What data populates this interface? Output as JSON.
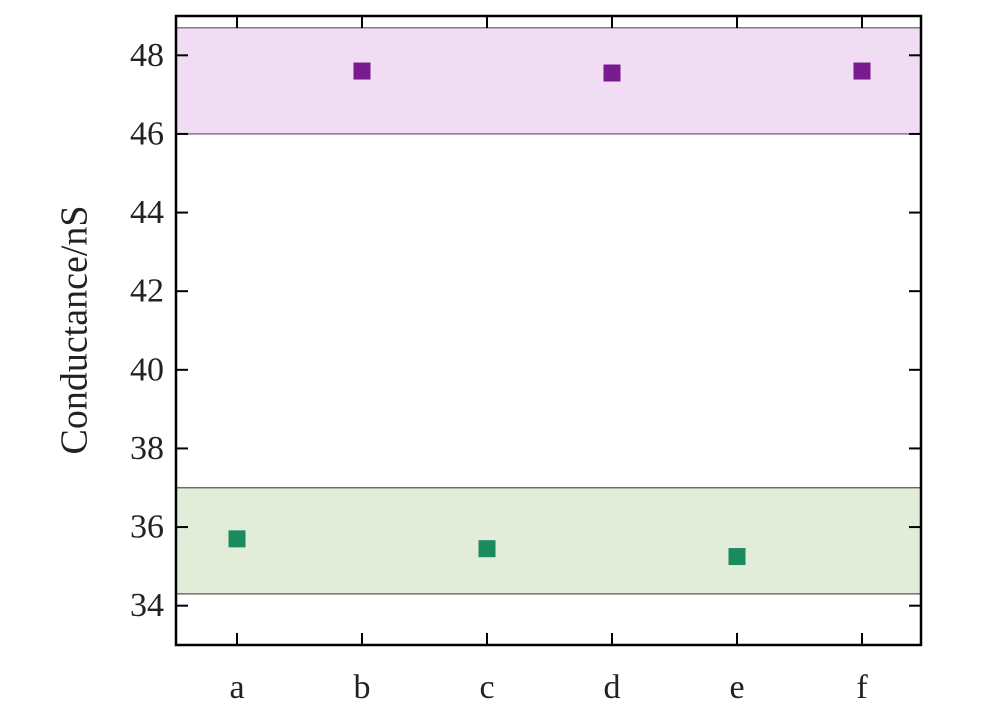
{
  "chart_data": {
    "type": "scatter",
    "xlabel": "",
    "ylabel": "Conductance/nS",
    "ylim": [
      33,
      49
    ],
    "categories": [
      "a",
      "b",
      "c",
      "d",
      "e",
      "f"
    ],
    "y_ticks": [
      34,
      36,
      38,
      40,
      42,
      44,
      46,
      48
    ],
    "bands": [
      {
        "y_range": [
          46.0,
          48.7
        ],
        "color": "#f0dcf3"
      },
      {
        "y_range": [
          34.3,
          37.0
        ],
        "color": "#e1edd9"
      }
    ],
    "series": [
      {
        "marker": "square",
        "color": "#7a1a8f",
        "points": [
          {
            "x": "b",
            "y": 47.6
          },
          {
            "x": "d",
            "y": 47.55
          },
          {
            "x": "f",
            "y": 47.6
          }
        ]
      },
      {
        "marker": "square",
        "color": "#1b8a5e",
        "points": [
          {
            "x": "a",
            "y": 35.7
          },
          {
            "x": "c",
            "y": 35.45
          },
          {
            "x": "e",
            "y": 35.25
          }
        ]
      }
    ],
    "grid": false,
    "legend": "none"
  }
}
